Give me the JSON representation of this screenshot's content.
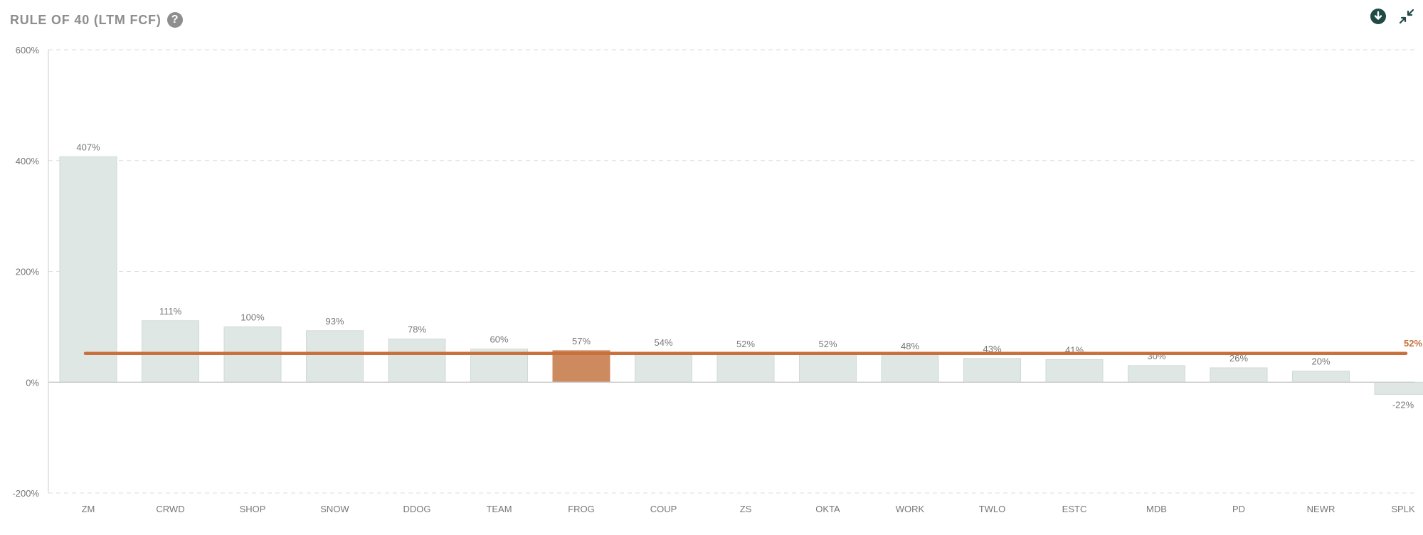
{
  "header": {
    "title": "RULE OF 40 (LTM FCF)",
    "help_glyph": "?",
    "help_icon": "question-circle-icon"
  },
  "toolbar": {
    "download_icon": "download-icon",
    "collapse_icon": "collapse-icon"
  },
  "colors": {
    "bar": "#dfe7e5",
    "bar_stroke": "#cfdad7",
    "highlight": "#cd8a5e",
    "average_line": "#c8713e",
    "grid": "#dddddd",
    "axis": "#cccccc",
    "icon_dark": "#1f4a46"
  },
  "chart_data": {
    "type": "bar",
    "categories": [
      "ZM",
      "CRWD",
      "SHOP",
      "SNOW",
      "DDOG",
      "TEAM",
      "FROG",
      "COUP",
      "ZS",
      "OKTA",
      "WORK",
      "TWLO",
      "ESTC",
      "MDB",
      "PD",
      "NEWR",
      "SPLK"
    ],
    "values": [
      407,
      111,
      100,
      93,
      78,
      60,
      57,
      54,
      52,
      52,
      48,
      43,
      41,
      30,
      26,
      20,
      -22
    ],
    "value_labels": [
      "407%",
      "111%",
      "100%",
      "93%",
      "78%",
      "60%",
      "57%",
      "54%",
      "52%",
      "52%",
      "48%",
      "43%",
      "41%",
      "30%",
      "26%",
      "20%",
      "-22%"
    ],
    "highlight": "FROG",
    "average": 52,
    "average_label": "52%",
    "ylim": [
      -200,
      600
    ],
    "yticks": [
      -200,
      0,
      200,
      400,
      600
    ],
    "ytick_labels": [
      "-200%",
      "0%",
      "200%",
      "400%",
      "600%"
    ],
    "grid": true,
    "title": "RULE OF 40 (LTM FCF)",
    "xlabel": "",
    "ylabel": ""
  }
}
